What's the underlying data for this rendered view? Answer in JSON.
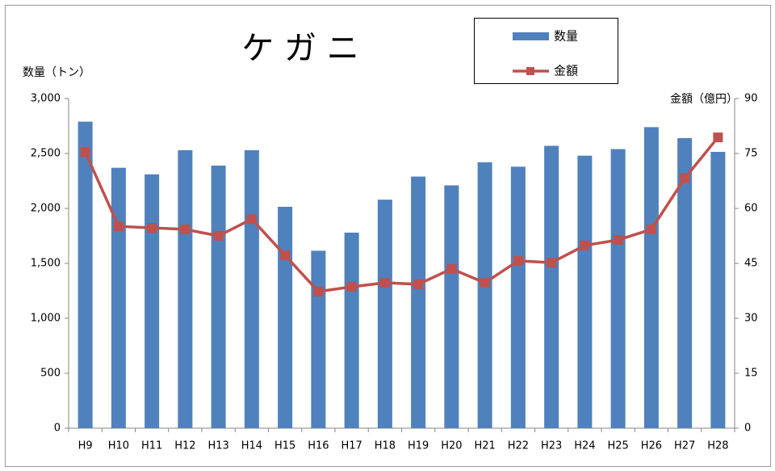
{
  "chart_data": {
    "type": "bar_line",
    "title": "ケ ガ ニ",
    "y_label": "数量（トン）",
    "y2_label": "金額（億円）",
    "categories": [
      "H9",
      "H10",
      "H11",
      "H12",
      "H13",
      "H14",
      "H15",
      "H16",
      "H17",
      "H18",
      "H19",
      "H20",
      "H21",
      "H22",
      "H23",
      "H24",
      "H25",
      "H26",
      "H27",
      "H28"
    ],
    "series": [
      {
        "name": "数量",
        "type": "bar",
        "color": "#4f81bd",
        "values": [
          2790,
          2370,
          2310,
          2530,
          2390,
          2530,
          2015,
          1615,
          1780,
          2080,
          2290,
          2210,
          2420,
          2380,
          2570,
          2480,
          2540,
          2740,
          2640,
          2515
        ]
      },
      {
        "name": "金額",
        "type": "line",
        "axis": "y2",
        "color": "#c0504d",
        "values": [
          75.4,
          55.1,
          54.7,
          54.3,
          52.5,
          57.1,
          47.2,
          37.3,
          38.6,
          39.7,
          39.3,
          43.5,
          39.7,
          45.7,
          45.2,
          49.9,
          51.4,
          54.3,
          68.2,
          79.4
        ]
      }
    ],
    "ylim": [
      0,
      3000
    ],
    "yticks": [
      0,
      500,
      {
        "value": 1000,
        "label": "1,000"
      },
      {
        "value": 1500,
        "label": "1,500"
      },
      {
        "value": 2000,
        "label": "2,000"
      },
      {
        "value": 2500,
        "label": "2,500"
      },
      {
        "value": 3000,
        "label": "3,000"
      }
    ],
    "y2lim": [
      0,
      90
    ],
    "y2ticks": [
      0,
      15,
      30,
      45,
      60,
      75,
      90
    ],
    "grid": false
  }
}
